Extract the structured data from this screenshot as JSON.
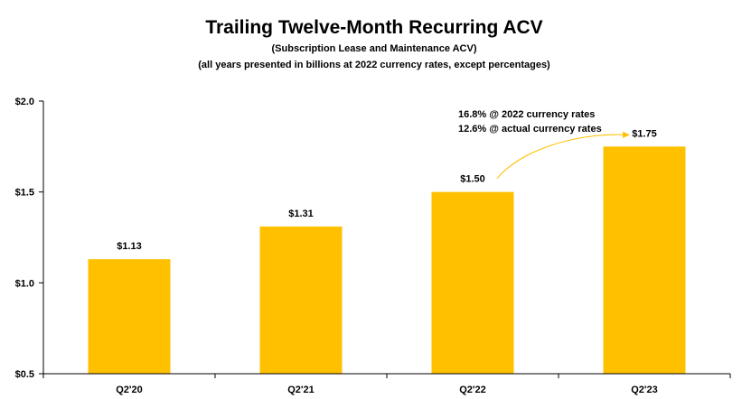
{
  "chart_data": {
    "type": "bar",
    "title": "Trailing Twelve-Month Recurring ACV",
    "subtitle": "(Subscription Lease and Maintenance ACV)",
    "note": "(all years presented in billions at 2022 currency rates, except percentages)",
    "categories": [
      "Q2'20",
      "Q2'21",
      "Q2'22",
      "Q2'23"
    ],
    "values": [
      1.13,
      1.31,
      1.5,
      1.75
    ],
    "data_labels": [
      "$1.13",
      "$1.31",
      "$1.50",
      "$1.75"
    ],
    "ylim": [
      0.5,
      2.0
    ],
    "y_ticks": [
      {
        "value": 0.5,
        "label": "$0.5"
      },
      {
        "value": 1.0,
        "label": "$1.0"
      },
      {
        "value": 1.5,
        "label": "$1.5"
      },
      {
        "value": 2.0,
        "label": "$2.0"
      }
    ],
    "grid": false,
    "bar_color": "#FFC000",
    "axis_color": "#000000",
    "annotation": {
      "lines": [
        "16.8% @ 2022 currency rates",
        "12.6% @ actual currency rates"
      ],
      "from_category": "Q2'22",
      "to_category": "Q2'23",
      "arrow_color": "#FFC000"
    }
  }
}
